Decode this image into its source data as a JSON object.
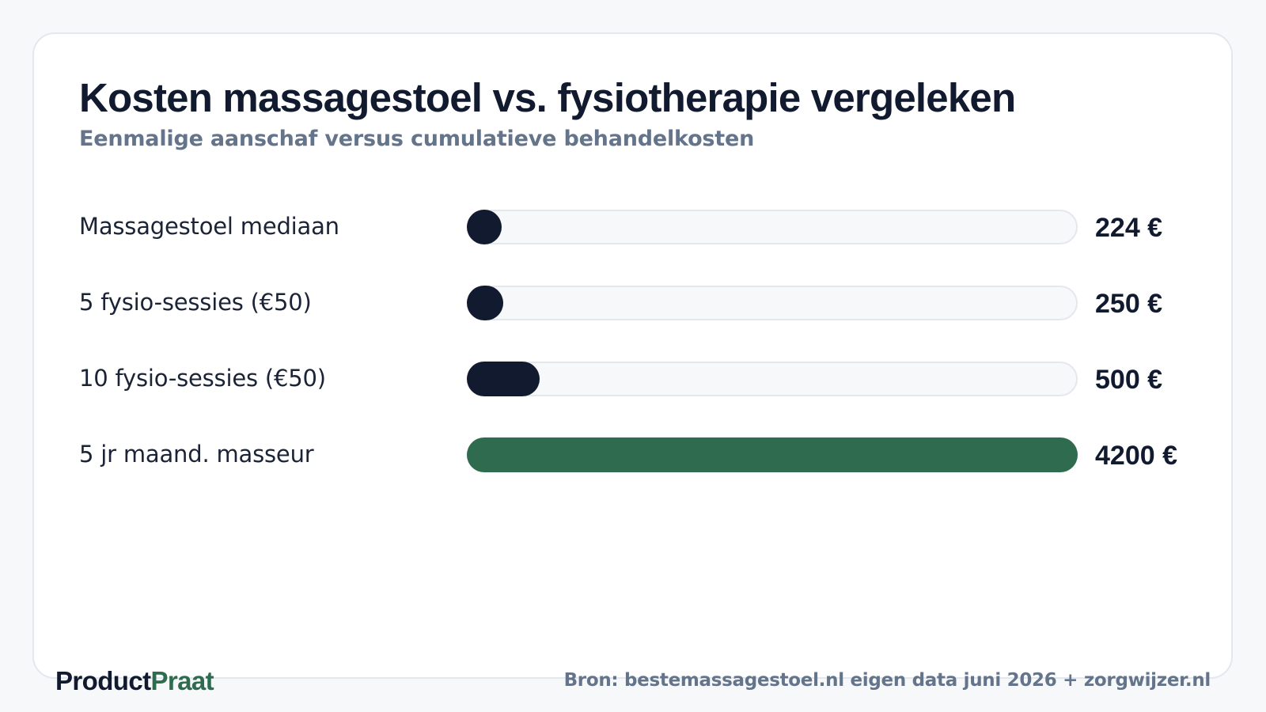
{
  "title": "Kosten massagestoel vs. fysiotherapie vergeleken",
  "subtitle": "Eenmalige aanschaf versus cumulatieve behandelkosten",
  "chart_data": {
    "type": "bar",
    "orientation": "horizontal",
    "title": "Kosten massagestoel vs. fysiotherapie vergeleken",
    "subtitle": "Eenmalige aanschaf versus cumulatieve behandelkosten",
    "categories": [
      "Massagestoel mediaan",
      "5 fysio-sessies (€50)",
      "10 fysio-sessies (€50)",
      "5 jr maand. masseur"
    ],
    "values": [
      224,
      250,
      500,
      4200
    ],
    "value_labels": [
      "224 €",
      "250 €",
      "500 €",
      "4200 €"
    ],
    "unit": "€",
    "xlim": [
      0,
      4200
    ],
    "bar_colors": [
      "#111a2e",
      "#111a2e",
      "#111a2e",
      "#2e6b4f"
    ],
    "track_color": "#f6f8fa",
    "grid": false,
    "legend": "none"
  },
  "footer": {
    "brand_part1": "Product",
    "brand_part2": "Praat",
    "source": "Bron: bestemassagestoel.nl eigen data juni 2026 + zorgwijzer.nl"
  },
  "colors": {
    "text_primary": "#111a2e",
    "text_muted": "#64748b",
    "accent": "#2e6b4f",
    "background": "#f6f8fa",
    "card": "#ffffff"
  }
}
